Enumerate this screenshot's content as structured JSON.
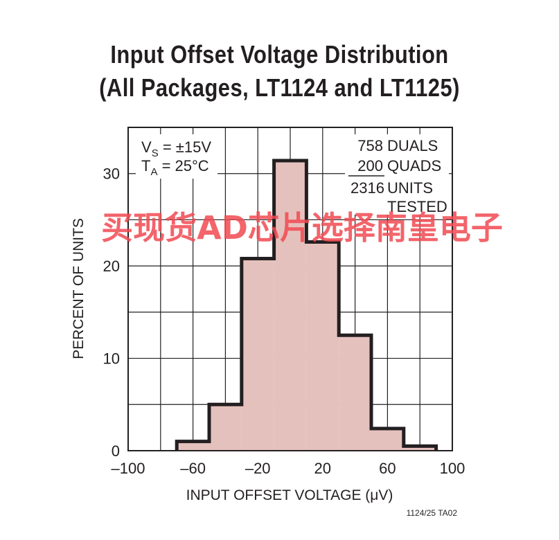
{
  "chart_data": {
    "type": "bar",
    "title": "Input Offset Voltage Distribution",
    "subtitle": "(All Packages, LT1124 and LT1125)",
    "xlabel": "INPUT OFFSET VOLTAGE (μV)",
    "ylabel": "PERCENT OF UNITS",
    "xlim": [
      -100,
      100
    ],
    "ylim": [
      0,
      35
    ],
    "x_ticks": [
      "–100",
      "–60",
      "–20",
      "20",
      "60",
      "100"
    ],
    "y_ticks": [
      "0",
      "10",
      "20",
      "30"
    ],
    "bins": [
      {
        "from": -70,
        "to": -50,
        "value": 1.0
      },
      {
        "from": -50,
        "to": -30,
        "value": 5.0
      },
      {
        "from": -30,
        "to": -10,
        "value": 20.8
      },
      {
        "from": -10,
        "to": 10,
        "value": 31.4
      },
      {
        "from": 10,
        "to": 30,
        "value": 22.6
      },
      {
        "from": 30,
        "to": 50,
        "value": 12.5
      },
      {
        "from": 50,
        "to": 70,
        "value": 2.4
      },
      {
        "from": 70,
        "to": 90,
        "value": 0.5
      }
    ],
    "grid": true,
    "fill_color": "#e5c1bd",
    "outline_color": "#231f20"
  },
  "conditions": {
    "vs_label": "V",
    "vs_sub": "S",
    "vs_value": " = ±15V",
    "ta_label": "T",
    "ta_sub": "A",
    "ta_value": " = 25°C"
  },
  "counts": {
    "duals_num": "758",
    "duals_label": "DUALS",
    "quads_num": "200",
    "quads_label": "QUADS",
    "units_num": "2316",
    "units_label": "UNITS",
    "tested_label": "TESTED"
  },
  "figure_id": "1124/25 TA02",
  "watermark": "买现货AD芯片选择南皇电子"
}
